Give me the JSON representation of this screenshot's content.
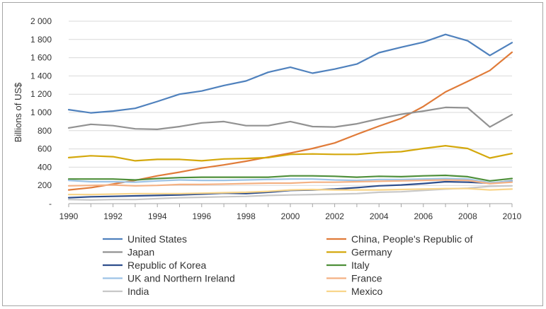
{
  "chart_data": {
    "type": "line",
    "title": "",
    "xlabel": "",
    "ylabel": "Billions of US$",
    "x": [
      1990,
      1991,
      1992,
      1993,
      1994,
      1995,
      1996,
      1997,
      1998,
      1999,
      2000,
      2001,
      2002,
      2003,
      2004,
      2005,
      2006,
      2007,
      2008,
      2009,
      2010
    ],
    "xticks": [
      "1990",
      "1992",
      "1994",
      "1996",
      "1998",
      "2000",
      "2002",
      "2004",
      "2006",
      "2008",
      "2010"
    ],
    "ylim": [
      0,
      2000
    ],
    "yticks": [
      "-",
      "200",
      "400",
      "600",
      "800",
      "1 000",
      "1 200",
      "1 400",
      "1 600",
      "1 800",
      "2 000"
    ],
    "grid": "horizontal",
    "legend_position": "bottom",
    "series": [
      {
        "name": "United States",
        "color": "#4f81bd",
        "values": [
          1030,
          995,
          1015,
          1045,
          1120,
          1200,
          1235,
          1295,
          1345,
          1440,
          1495,
          1430,
          1475,
          1530,
          1655,
          1715,
          1770,
          1855,
          1785,
          1625,
          1765
        ]
      },
      {
        "name": "China, People's Republic of",
        "color": "#e07b39",
        "values": [
          150,
          175,
          215,
          255,
          305,
          345,
          390,
          425,
          465,
          510,
          555,
          605,
          665,
          760,
          850,
          935,
          1065,
          1225,
          1340,
          1460,
          1660
        ]
      },
      {
        "name": "Japan",
        "color": "#929292",
        "values": [
          830,
          870,
          855,
          820,
          815,
          845,
          885,
          900,
          855,
          855,
          900,
          845,
          840,
          875,
          930,
          980,
          1015,
          1055,
          1050,
          840,
          975
        ]
      },
      {
        "name": "Germany",
        "color": "#d4a80c",
        "values": [
          505,
          525,
          515,
          470,
          485,
          485,
          470,
          490,
          495,
          505,
          540,
          545,
          540,
          540,
          560,
          570,
          605,
          635,
          605,
          500,
          550
        ]
      },
      {
        "name": "Republic of Korea",
        "color": "#2e4e8c",
        "values": [
          65,
          75,
          80,
          85,
          90,
          95,
          105,
          115,
          110,
          125,
          145,
          150,
          160,
          175,
          195,
          205,
          220,
          240,
          235,
          225,
          250
        ]
      },
      {
        "name": "Italy",
        "color": "#4e8f3a",
        "values": [
          270,
          270,
          270,
          260,
          275,
          285,
          290,
          290,
          290,
          290,
          305,
          305,
          300,
          290,
          300,
          295,
          305,
          310,
          295,
          250,
          275
        ]
      },
      {
        "name": "UK and Northern Ireland",
        "color": "#9dc3e6",
        "values": [
          255,
          240,
          240,
          235,
          250,
          260,
          255,
          255,
          260,
          265,
          270,
          270,
          260,
          255,
          265,
          265,
          270,
          275,
          270,
          230,
          245
        ]
      },
      {
        "name": "France",
        "color": "#f4b183",
        "values": [
          195,
          200,
          205,
          195,
          200,
          210,
          210,
          215,
          220,
          225,
          225,
          235,
          235,
          240,
          245,
          250,
          255,
          260,
          255,
          220,
          235
        ]
      },
      {
        "name": "India",
        "color": "#c8c8c8",
        "values": [
          45,
          40,
          45,
          45,
          55,
          65,
          70,
          75,
          80,
          90,
          95,
          100,
          105,
          110,
          125,
          130,
          145,
          160,
          170,
          190,
          195
        ]
      },
      {
        "name": "Mexico",
        "color": "#f8d58a",
        "values": [
          100,
          100,
          105,
          110,
          110,
          110,
          115,
          120,
          125,
          135,
          150,
          155,
          150,
          150,
          150,
          155,
          160,
          165,
          165,
          150,
          160
        ]
      }
    ]
  }
}
